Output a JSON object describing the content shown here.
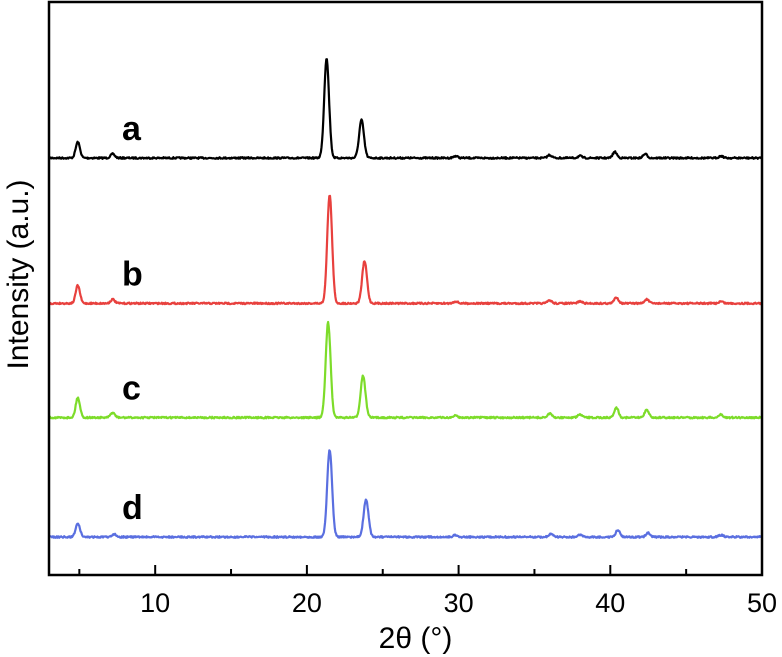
{
  "chart_data": {
    "type": "line",
    "title": "",
    "xlabel": "2θ (°)",
    "ylabel": "Intensity (a.u.)",
    "xlim": [
      3,
      50
    ],
    "xticks": [
      10,
      20,
      30,
      40,
      50
    ],
    "xtick_labels": [
      "10",
      "20",
      "30",
      "40",
      "50"
    ],
    "y_scale": "arbitrary units, traces vertically offset",
    "yticks_shown": false,
    "grid": false,
    "legend": "none (letter labels beside each trace)",
    "series": [
      {
        "name": "a",
        "color": "#000000",
        "baseline": 0.85,
        "peaks": [
          {
            "x": 4.9,
            "height": 0.16
          },
          {
            "x": 7.2,
            "height": 0.04
          },
          {
            "x": 21.3,
            "height": 1.0
          },
          {
            "x": 23.6,
            "height": 0.38
          },
          {
            "x": 29.8,
            "height": 0.02
          },
          {
            "x": 36.0,
            "height": 0.03
          },
          {
            "x": 38.0,
            "height": 0.02
          },
          {
            "x": 40.3,
            "height": 0.06
          },
          {
            "x": 42.3,
            "height": 0.04
          },
          {
            "x": 47.3,
            "height": 0.02
          }
        ]
      },
      {
        "name": "b",
        "color": "#e8413e",
        "baseline": 0.57,
        "peaks": [
          {
            "x": 4.9,
            "height": 0.18
          },
          {
            "x": 7.2,
            "height": 0.04
          },
          {
            "x": 21.5,
            "height": 1.08
          },
          {
            "x": 23.8,
            "height": 0.42
          },
          {
            "x": 29.8,
            "height": 0.02
          },
          {
            "x": 36.0,
            "height": 0.03
          },
          {
            "x": 38.0,
            "height": 0.02
          },
          {
            "x": 40.4,
            "height": 0.06
          },
          {
            "x": 42.4,
            "height": 0.04
          },
          {
            "x": 47.3,
            "height": 0.02
          }
        ]
      },
      {
        "name": "c",
        "color": "#7ddc2a",
        "baseline": 0.35,
        "peaks": [
          {
            "x": 4.9,
            "height": 0.2
          },
          {
            "x": 7.2,
            "height": 0.05
          },
          {
            "x": 21.4,
            "height": 0.95
          },
          {
            "x": 23.7,
            "height": 0.42
          },
          {
            "x": 29.8,
            "height": 0.02
          },
          {
            "x": 36.0,
            "height": 0.04
          },
          {
            "x": 38.0,
            "height": 0.03
          },
          {
            "x": 40.4,
            "height": 0.1
          },
          {
            "x": 42.4,
            "height": 0.08
          },
          {
            "x": 47.3,
            "height": 0.03
          }
        ]
      },
      {
        "name": "d",
        "color": "#5a6fe0",
        "baseline": 0.12,
        "peaks": [
          {
            "x": 4.9,
            "height": 0.14
          },
          {
            "x": 7.3,
            "height": 0.03
          },
          {
            "x": 21.5,
            "height": 0.87
          },
          {
            "x": 23.9,
            "height": 0.37
          },
          {
            "x": 29.8,
            "height": 0.02
          },
          {
            "x": 36.1,
            "height": 0.03
          },
          {
            "x": 38.0,
            "height": 0.02
          },
          {
            "x": 40.5,
            "height": 0.07
          },
          {
            "x": 42.5,
            "height": 0.04
          },
          {
            "x": 47.3,
            "height": 0.02
          }
        ]
      }
    ]
  }
}
